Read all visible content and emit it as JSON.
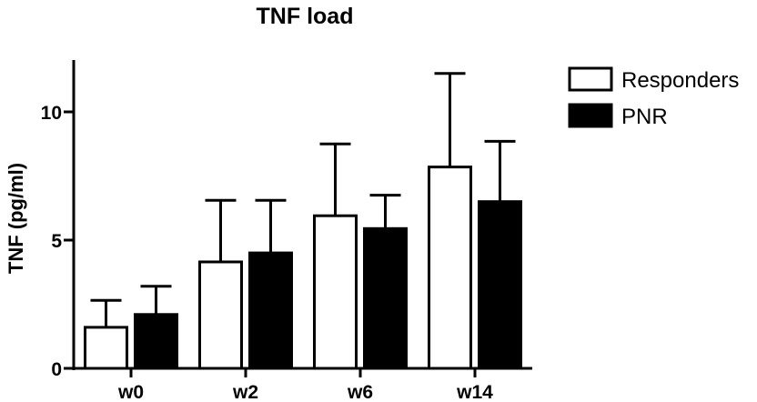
{
  "chart_data": {
    "type": "bar",
    "title": "TNF load",
    "xlabel": "",
    "ylabel": "TNF (pg/ml)",
    "ylim": [
      0,
      12
    ],
    "yticks": [
      0,
      5,
      10
    ],
    "categories": [
      "w0",
      "w2",
      "w6",
      "w14"
    ],
    "series": [
      {
        "name": "Responders",
        "values": [
          1.6,
          4.15,
          5.95,
          7.85
        ],
        "error": [
          1.05,
          2.4,
          2.8,
          3.65
        ],
        "fill": "#ffffff",
        "stroke": "#000000"
      },
      {
        "name": "PNR",
        "values": [
          2.1,
          4.5,
          5.45,
          6.5
        ],
        "error": [
          1.1,
          2.05,
          1.3,
          2.35
        ],
        "fill": "#000000",
        "stroke": "#000000"
      }
    ],
    "error_bars": "upper",
    "grid": false,
    "legend_position": "top-right"
  }
}
